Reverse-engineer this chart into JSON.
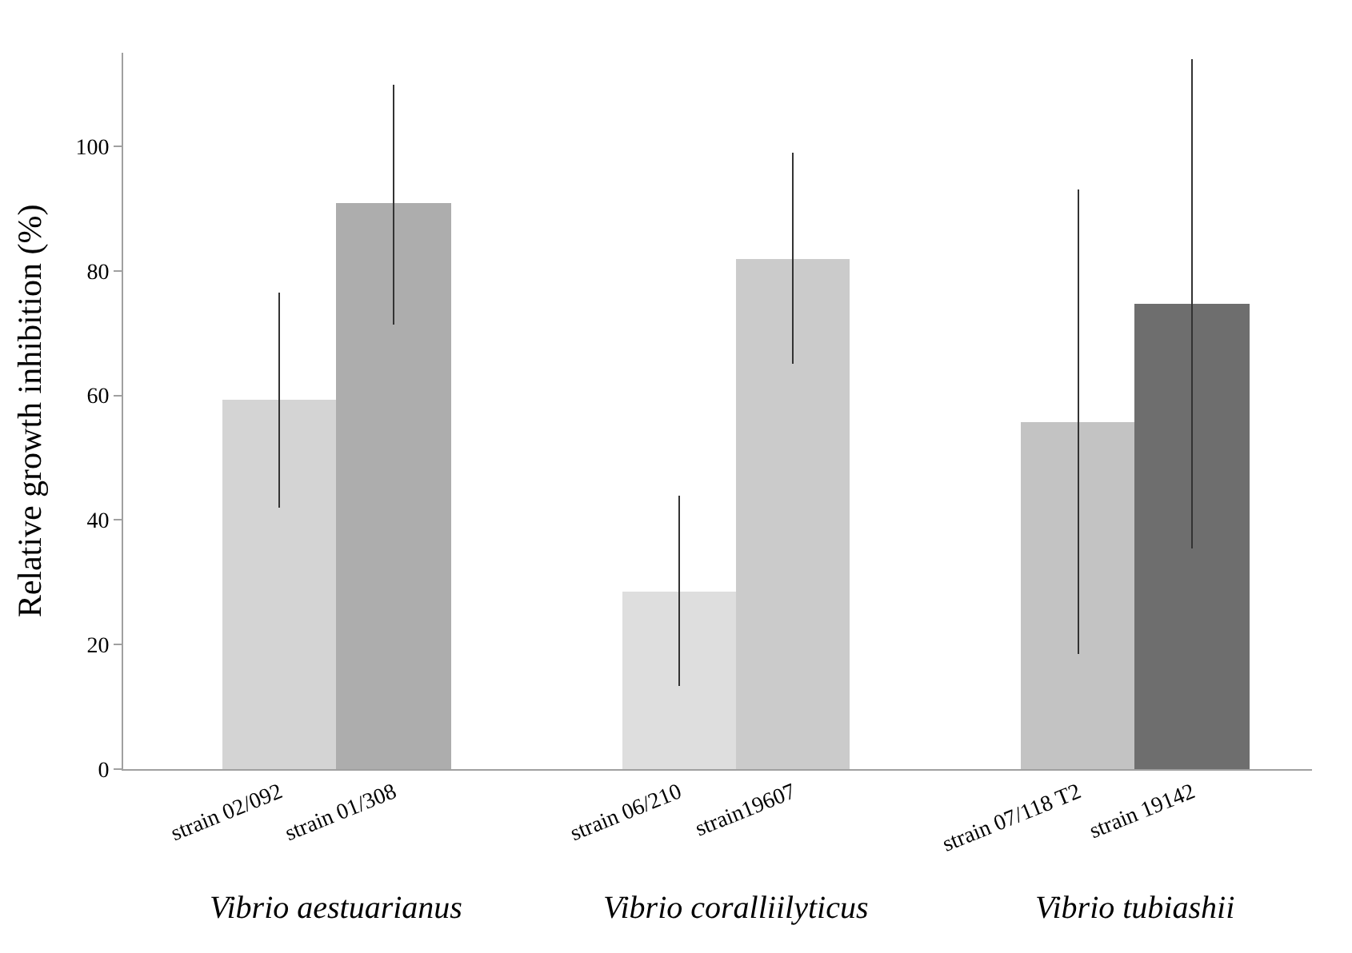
{
  "chart_data": {
    "type": "bar",
    "ylabel": "Relative growth inhibition (%)",
    "categories": [
      "strain 02/092",
      "strain 01/308",
      "strain 06/210",
      "strain19607",
      "strain 07/118 T2",
      "strain 19142"
    ],
    "values": [
      59.3,
      90.8,
      28.5,
      82.0,
      55.8,
      74.6
    ],
    "colors": [
      "#d4d4d4",
      "#adadad",
      "#dedede",
      "#cbcbcb",
      "#c3c3c3",
      "#6e6e6e"
    ],
    "errors": [
      [
        42.0,
        76.5
      ],
      [
        71.3,
        109.9
      ],
      [
        13.3,
        43.9
      ],
      [
        65.1,
        98.9
      ],
      [
        18.5,
        93.0
      ],
      [
        35.4,
        114.0
      ]
    ],
    "ylim": [
      0,
      115
    ],
    "yticks": [
      0,
      20,
      40,
      60,
      80,
      100
    ],
    "annotations": [
      "Vibrio aestuarianus",
      "Vibrio coralliilyticus",
      "Vibrio tubiashii"
    ]
  }
}
